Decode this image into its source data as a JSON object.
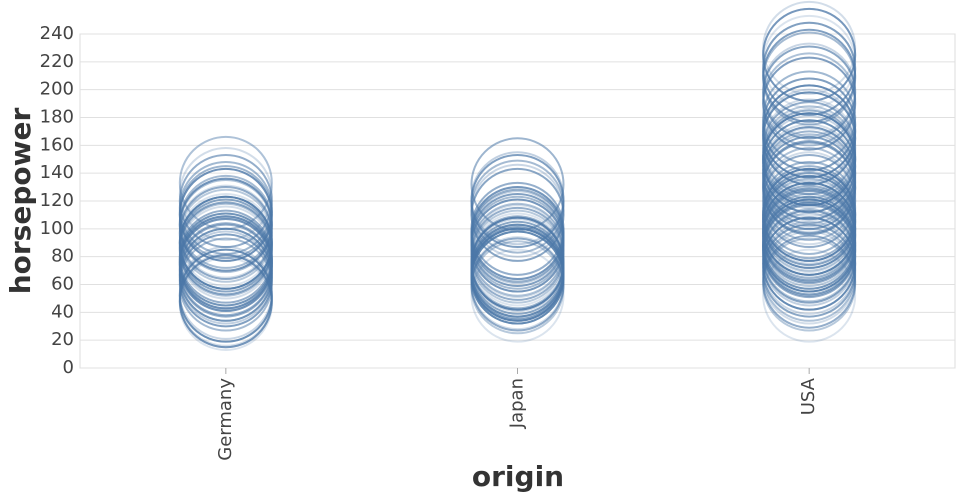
{
  "chart_data": {
    "type": "strip",
    "x_label": "origin",
    "y_label": "horsepower",
    "categories": [
      "Germany",
      "Japan",
      "USA"
    ],
    "values": [
      [
        46,
        48,
        48,
        49,
        52,
        52,
        54,
        60,
        63,
        65,
        67,
        67,
        67,
        70,
        71,
        71,
        74,
        74,
        75,
        76,
        76,
        78,
        78,
        78,
        80,
        83,
        85,
        86,
        88,
        88,
        90,
        90,
        90,
        92,
        95,
        97,
        98,
        102,
        103,
        103,
        105,
        110,
        110,
        112,
        115,
        115,
        120,
        125,
        133
      ],
      [
        52,
        58,
        60,
        61,
        65,
        65,
        65,
        67,
        67,
        67,
        68,
        68,
        69,
        70,
        70,
        70,
        72,
        74,
        75,
        75,
        75,
        76,
        78,
        80,
        82,
        84,
        85,
        88,
        88,
        90,
        92,
        94,
        95,
        96,
        97,
        97,
        100,
        100,
        110,
        113,
        116,
        120,
        122,
        132
      ],
      [
        52,
        60,
        62,
        65,
        67,
        70,
        72,
        75,
        75,
        78,
        80,
        80,
        81,
        84,
        85,
        85,
        86,
        88,
        88,
        88,
        90,
        90,
        90,
        92,
        94,
        95,
        95,
        96,
        97,
        98,
        100,
        100,
        100,
        102,
        103,
        105,
        105,
        105,
        107,
        108,
        110,
        110,
        110,
        112,
        115,
        115,
        120,
        122,
        125,
        129,
        130,
        130,
        133,
        135,
        137,
        139,
        140,
        140,
        142,
        145,
        145,
        148,
        150,
        150,
        150,
        152,
        153,
        155,
        158,
        160,
        165,
        165,
        167,
        170,
        170,
        175,
        175,
        180,
        180,
        190,
        190,
        193,
        198,
        200,
        208,
        210,
        215,
        215,
        220,
        225,
        225,
        230
      ]
    ],
    "color": "#4c78a8",
    "ylim": [
      0,
      250
    ],
    "yticks": [
      0,
      20,
      40,
      60,
      80,
      100,
      120,
      140,
      160,
      180,
      200,
      220,
      240
    ],
    "grid": true
  }
}
